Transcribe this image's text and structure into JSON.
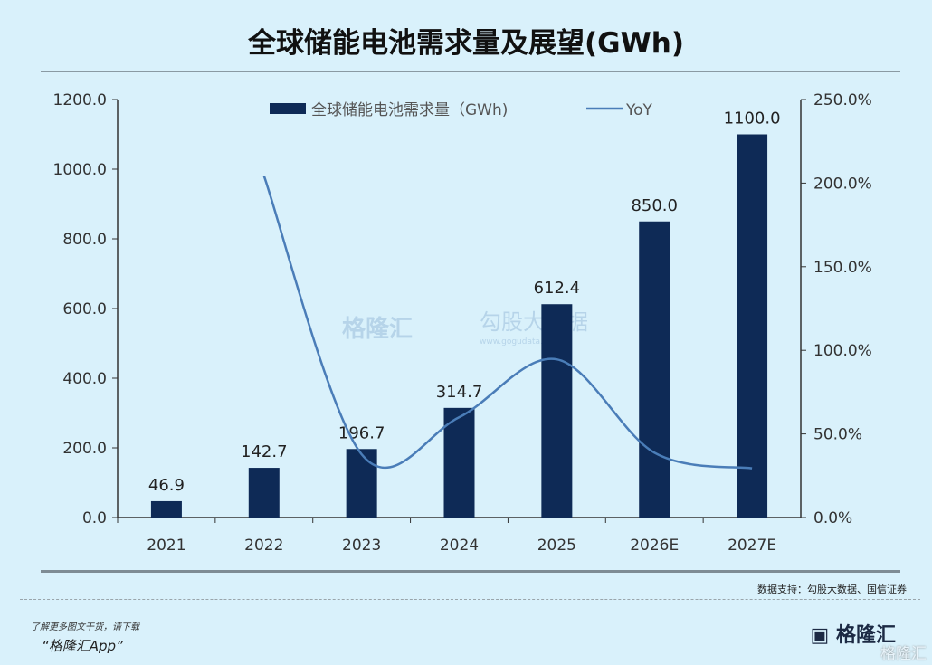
{
  "chart_data": {
    "type": "bar+line",
    "title": "全球储能电池需求量及展望(GWh)",
    "categories": [
      "2021",
      "2022",
      "2023",
      "2024",
      "2025",
      "2026E",
      "2027E"
    ],
    "series": [
      {
        "name": "全球储能电池需求量（GWh)",
        "type": "bar",
        "axis": "left",
        "color": "#0e2a56",
        "values": [
          46.9,
          142.7,
          196.7,
          314.7,
          612.4,
          850.0,
          1100.0
        ],
        "labels": [
          "46.9",
          "142.7",
          "196.7",
          "314.7",
          "612.4",
          "850.0",
          "1100.0"
        ]
      },
      {
        "name": "YoY",
        "type": "line",
        "axis": "right",
        "color": "#4a7db8",
        "values": [
          null,
          204.3,
          37.8,
          60.0,
          94.6,
          38.8,
          29.4
        ]
      }
    ],
    "left_axis": {
      "ylim": [
        0,
        1200
      ],
      "ticks": [
        "0.0",
        "200.0",
        "400.0",
        "600.0",
        "800.0",
        "1000.0",
        "1200.0"
      ]
    },
    "right_axis": {
      "ylim": [
        0,
        250
      ],
      "ticks": [
        "0.0%",
        "50.0%",
        "100.0%",
        "150.0%",
        "200.0%",
        "250.0%"
      ]
    },
    "legend_position": "top",
    "grid": false
  },
  "footer": {
    "source": "数据支持：勾股大数据、国信证券",
    "promo_line1": "了解更多图文干货，请下载",
    "promo_line2": "“格隆汇App”",
    "logo": "格隆汇",
    "logo_watermark": "格隆汇"
  },
  "watermark": {
    "brand1": "格隆汇",
    "brand2": "勾股大数据",
    "url": "www.gogudata.com"
  }
}
